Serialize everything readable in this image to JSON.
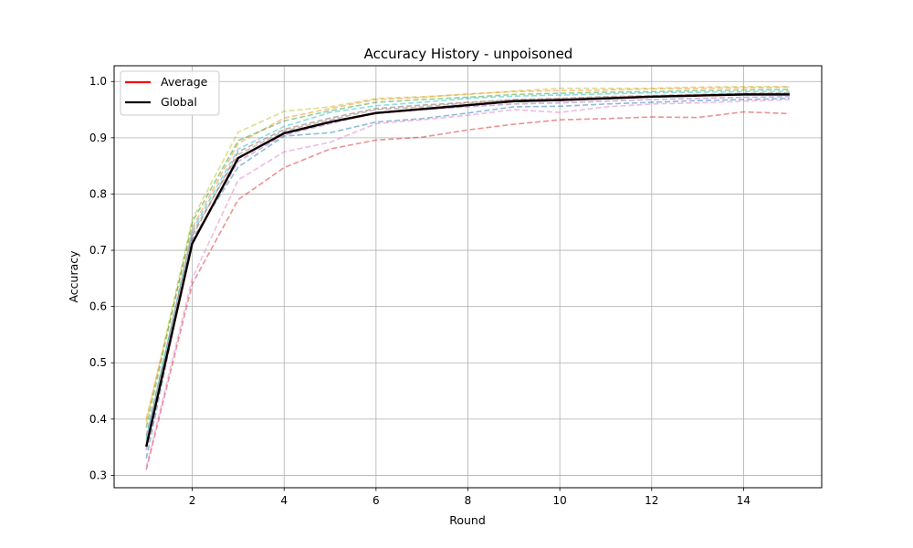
{
  "chart_data": {
    "type": "line",
    "title": "Accuracy History - unpoisoned",
    "xlabel": "Round",
    "ylabel": "Accuracy",
    "xlim": [
      0.3,
      15.7
    ],
    "ylim": [
      0.278,
      1.028
    ],
    "xticks": [
      2,
      4,
      6,
      8,
      10,
      12,
      14
    ],
    "yticks": [
      0.3,
      0.4,
      0.5,
      0.6,
      0.7,
      0.8,
      0.9,
      1.0
    ],
    "xtick_labels": [
      "2",
      "4",
      "6",
      "8",
      "10",
      "12",
      "14"
    ],
    "ytick_labels": [
      "0.3",
      "0.4",
      "0.5",
      "0.6",
      "0.7",
      "0.8",
      "0.9",
      "1.0"
    ],
    "grid": true,
    "legend_position": "top-left",
    "x": [
      1,
      2,
      3,
      4,
      5,
      6,
      7,
      8,
      9,
      10,
      11,
      12,
      13,
      14,
      15
    ],
    "series": [
      {
        "name": "Average",
        "color": "#ff0000",
        "style": "solid",
        "values": [
          0.351,
          0.712,
          0.864,
          0.908,
          0.928,
          0.944,
          0.951,
          0.958,
          0.965,
          0.967,
          0.97,
          0.973,
          0.975,
          0.977,
          0.977
        ]
      },
      {
        "name": "Global",
        "color": "#000000",
        "style": "solid",
        "values": [
          0.351,
          0.712,
          0.864,
          0.908,
          0.928,
          0.944,
          0.951,
          0.958,
          0.965,
          0.967,
          0.97,
          0.973,
          0.975,
          0.977,
          0.977
        ]
      },
      {
        "color": "#1f77b4",
        "style": "dashed",
        "values": [
          0.33,
          0.72,
          0.848,
          0.903,
          0.909,
          0.928,
          0.934,
          0.944,
          0.955,
          0.956,
          0.96,
          0.963,
          0.966,
          0.968,
          0.97
        ]
      },
      {
        "color": "#ff7f0e",
        "style": "dashed",
        "values": [
          0.4,
          0.74,
          0.89,
          0.935,
          0.952,
          0.968,
          0.972,
          0.978,
          0.982,
          0.984,
          0.985,
          0.987,
          0.988,
          0.989,
          0.99
        ]
      },
      {
        "color": "#2ca02c",
        "style": "dashed",
        "values": [
          0.385,
          0.75,
          0.895,
          0.93,
          0.948,
          0.963,
          0.968,
          0.972,
          0.977,
          0.979,
          0.981,
          0.982,
          0.984,
          0.985,
          0.986
        ]
      },
      {
        "color": "#d62728",
        "style": "dashed",
        "values": [
          0.31,
          0.64,
          0.79,
          0.847,
          0.88,
          0.896,
          0.901,
          0.914,
          0.924,
          0.932,
          0.934,
          0.937,
          0.936,
          0.946,
          0.943
        ]
      },
      {
        "color": "#9467bd",
        "style": "dashed",
        "values": [
          0.345,
          0.715,
          0.858,
          0.905,
          0.925,
          0.945,
          0.95,
          0.955,
          0.96,
          0.962,
          0.965,
          0.968,
          0.97,
          0.972,
          0.973
        ]
      },
      {
        "color": "#8c564b",
        "style": "dashed",
        "values": [
          0.37,
          0.725,
          0.875,
          0.915,
          0.935,
          0.952,
          0.958,
          0.963,
          0.968,
          0.97,
          0.973,
          0.975,
          0.977,
          0.979,
          0.98
        ]
      },
      {
        "color": "#e377c2",
        "style": "dashed",
        "values": [
          0.315,
          0.65,
          0.825,
          0.875,
          0.892,
          0.925,
          0.932,
          0.94,
          0.95,
          0.945,
          0.955,
          0.96,
          0.962,
          0.965,
          0.968
        ]
      },
      {
        "color": "#7f7f7f",
        "style": "dashed",
        "values": [
          0.36,
          0.73,
          0.87,
          0.912,
          0.932,
          0.95,
          0.955,
          0.962,
          0.967,
          0.969,
          0.972,
          0.974,
          0.976,
          0.978,
          0.979
        ]
      },
      {
        "color": "#bcbd22",
        "style": "dashed",
        "values": [
          0.395,
          0.755,
          0.91,
          0.947,
          0.955,
          0.97,
          0.973,
          0.977,
          0.983,
          0.988,
          0.988,
          0.988,
          0.99,
          0.991,
          0.991
        ]
      },
      {
        "color": "#17becf",
        "style": "dashed",
        "values": [
          0.365,
          0.735,
          0.88,
          0.92,
          0.945,
          0.957,
          0.963,
          0.97,
          0.974,
          0.976,
          0.978,
          0.98,
          0.981,
          0.982,
          0.983
        ]
      }
    ]
  }
}
